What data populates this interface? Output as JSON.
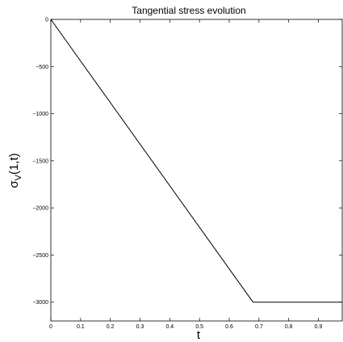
{
  "chart_data": {
    "type": "line",
    "title": "Tangential stress evolution",
    "xlabel": "t",
    "ylabel": {
      "symbol": "σ",
      "subscript": "V",
      "argument": "(1,t)"
    },
    "xlim": [
      0,
      0.98
    ],
    "ylim": [
      -3200,
      0
    ],
    "x_ticks": [
      0,
      0.1,
      0.2,
      0.3,
      0.4,
      0.5,
      0.6,
      0.7,
      0.8,
      0.9
    ],
    "x_tick_labels": [
      "0",
      "0.1",
      "0.2",
      "0.3",
      "0.4",
      "0.5",
      "0.6",
      "0.7",
      "0.8",
      "0.9"
    ],
    "y_ticks": [
      0,
      -500,
      -1000,
      -1500,
      -2000,
      -2500,
      -3000
    ],
    "y_tick_labels": [
      "0",
      "−500",
      "−1000",
      "−1500",
      "−2000",
      "−2500",
      "−3000"
    ],
    "grid": false,
    "series": [
      {
        "x": [
          0,
          0.68,
          0.98
        ],
        "y": [
          0,
          -3000,
          -3000
        ],
        "color": "#000000"
      }
    ]
  }
}
